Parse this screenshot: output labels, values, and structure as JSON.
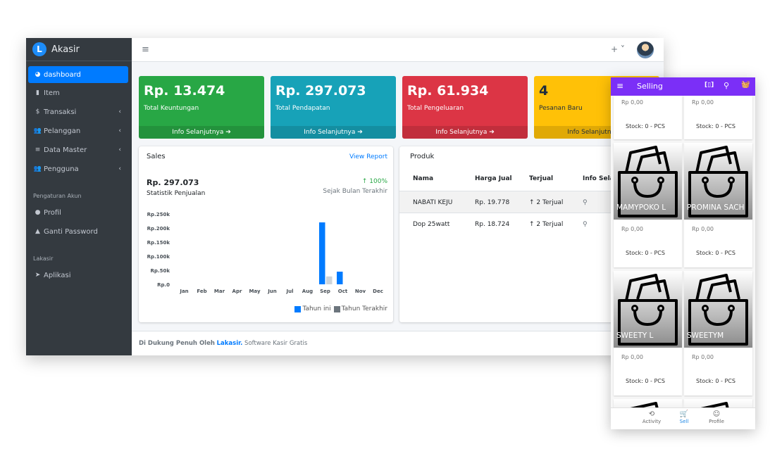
{
  "app": {
    "logo_letter": "L",
    "name": "Akasir"
  },
  "sidebar": {
    "items": [
      {
        "icon": "dashboard-icon",
        "glyph": "◕",
        "label": "dashboard",
        "active": true
      },
      {
        "icon": "file-icon",
        "glyph": "▮",
        "label": "Item"
      },
      {
        "icon": "dollar-icon",
        "glyph": "$",
        "label": "Transaksi",
        "caret": "‹"
      },
      {
        "icon": "users-icon",
        "glyph": "👥",
        "label": "Pelanggan",
        "caret": "‹"
      },
      {
        "icon": "database-icon",
        "glyph": "≡",
        "label": "Data Master",
        "caret": "‹"
      },
      {
        "icon": "users-icon",
        "glyph": "👥",
        "label": "Pengguna",
        "caret": "‹"
      }
    ],
    "header_account": "Pengaturan Akun",
    "account_items": [
      {
        "icon": "user-icon",
        "glyph": "●",
        "label": "Profil"
      },
      {
        "icon": "lock-icon",
        "glyph": "▲",
        "label": "Ganti Password"
      }
    ],
    "header_app": "Lakasir",
    "app_items": [
      {
        "icon": "send-icon",
        "glyph": "➤",
        "label": "Aplikasi"
      }
    ]
  },
  "topbar": {
    "menu_glyph": "≡",
    "plus_glyph": "+ ˅"
  },
  "stats": [
    {
      "value": "Rp. 13.474",
      "label": "Total Keuntungan",
      "more": "Info Selanjutnya ➔",
      "color": "#28a745"
    },
    {
      "value": "Rp. 297.073",
      "label": "Total Pendapatan",
      "more": "Info Selanjutnya ➔",
      "color": "#17a2b8"
    },
    {
      "value": "Rp. 61.934",
      "label": "Total Pengeluaran",
      "more": "Info Selanjutnya ➔",
      "color": "#dc3545"
    },
    {
      "value": "4",
      "label": "Pesanan Baru",
      "more": "Info Selanjutnya ➔",
      "color": "#ffc107"
    }
  ],
  "sales": {
    "title": "Sales",
    "view_report": "View Report",
    "amount": "Rp. 297.073",
    "subtitle": "Statistik Penjualan",
    "growth": "↑ 100%",
    "since": "Sejak Bulan Terakhir"
  },
  "chart_data": {
    "type": "bar",
    "categories": [
      "Jan",
      "Feb",
      "Mar",
      "Apr",
      "May",
      "Jun",
      "Jul",
      "Aug",
      "Sep",
      "Oct",
      "Nov",
      "Dec"
    ],
    "series": [
      {
        "name": "Tahun ini",
        "values": [
          0,
          0,
          0,
          0,
          0,
          0,
          0,
          0,
          220000,
          45000,
          0,
          0
        ],
        "color": "#007bff"
      },
      {
        "name": "Tahun Terakhir",
        "values": [
          0,
          0,
          0,
          0,
          0,
          0,
          0,
          0,
          28000,
          0,
          0,
          0
        ],
        "color": "#ced4da"
      }
    ],
    "yticks": [
      "Rp.250k",
      "Rp.200k",
      "Rp.150k",
      "Rp.100k",
      "Rp.50k",
      "Rp.0"
    ],
    "ylim": [
      0,
      250000
    ],
    "legend_position": "bottom-right"
  },
  "produk": {
    "title": "Produk",
    "columns": [
      "Nama",
      "Harga Jual",
      "Terjual",
      "Info Selan"
    ],
    "rows": [
      {
        "nama": "NABATI KEJU",
        "harga": "Rp. 19.778",
        "terjual": "↑ 2 Terjual"
      },
      {
        "nama": "Dop 25watt",
        "harga": "Rp. 18.724",
        "terjual": "↑ 2 Terjual"
      }
    ]
  },
  "footer": {
    "prefix": "Di Dukung Penuh Oleh",
    "brand": "Lakasir.",
    "suffix": "Software Kasir Gratis"
  },
  "mobile": {
    "title": "Selling",
    "menu_glyph": "≡",
    "barcode_glyph": "[▯]",
    "search_glyph": "⚲",
    "cart_glyph": "🧺",
    "products": [
      {
        "name": "",
        "price": "Rp 0,00",
        "stock": "Stock: 0 - PCS"
      },
      {
        "name": "",
        "price": "Rp 0,00",
        "stock": "Stock: 0 - PCS"
      },
      {
        "name": "MAMYPOKO L",
        "price": "Rp 0,00",
        "stock": "Stock: 0 - PCS"
      },
      {
        "name": "PROMINA SACH",
        "price": "Rp 0,00",
        "stock": "Stock: 0 - PCS"
      },
      {
        "name": "SWEETY L",
        "price": "Rp 0,00",
        "stock": "Stock: 0 - PCS"
      },
      {
        "name": "SWEETYM",
        "price": "Rp 0,00",
        "stock": "Stock: 0 - PCS"
      }
    ],
    "nav": [
      {
        "label": "Activity",
        "glyph": "⟲"
      },
      {
        "label": "Sell",
        "glyph": "🛒"
      },
      {
        "label": "Profile",
        "glyph": "☺"
      }
    ]
  }
}
